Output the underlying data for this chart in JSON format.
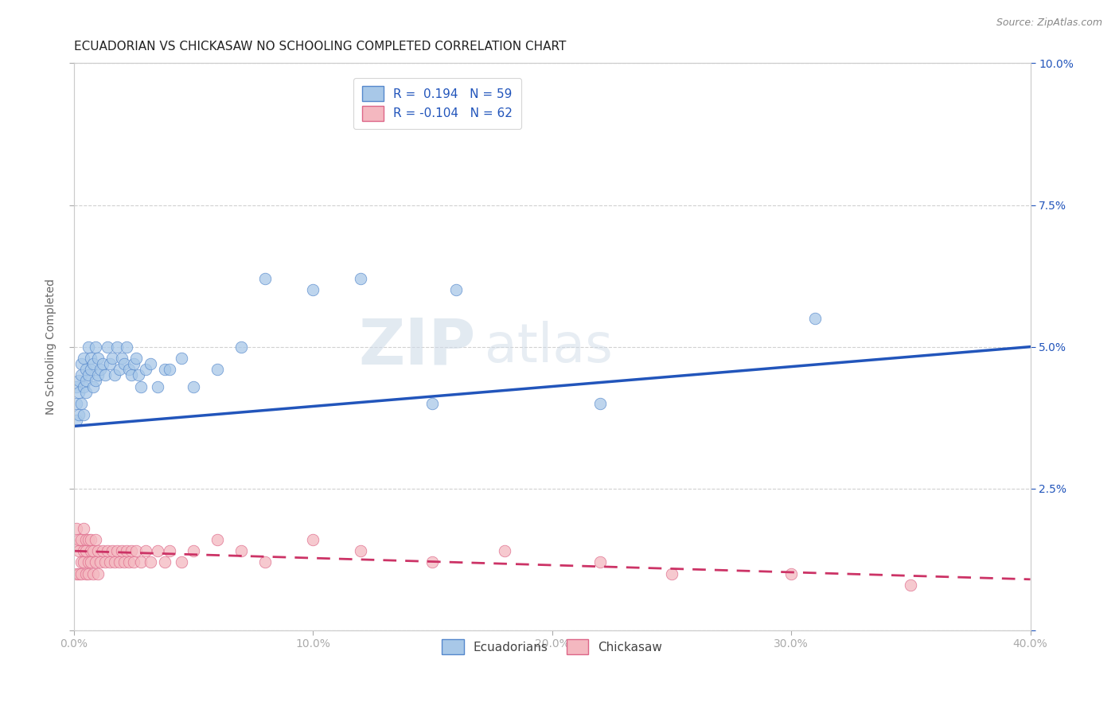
{
  "title": "ECUADORIAN VS CHICKASAW NO SCHOOLING COMPLETED CORRELATION CHART",
  "source": "Source: ZipAtlas.com",
  "xlabel_label": "Ecuadorians",
  "ylabel_label": "No Schooling Completed",
  "watermark_zip": "ZIP",
  "watermark_atlas": "atlas",
  "xmin": 0.0,
  "xmax": 0.4,
  "ymin": 0.0,
  "ymax": 0.1,
  "xticks": [
    0.0,
    0.1,
    0.2,
    0.3,
    0.4
  ],
  "xtick_labels": [
    "0.0%",
    "10.0%",
    "20.0%",
    "30.0%",
    "40.0%"
  ],
  "yticks": [
    0.0,
    0.025,
    0.05,
    0.075,
    0.1
  ],
  "ytick_labels_right": [
    "",
    "2.5%",
    "5.0%",
    "7.5%",
    "10.0%"
  ],
  "blue_R": 0.194,
  "blue_N": 59,
  "pink_R": -0.104,
  "pink_N": 62,
  "blue_color": "#a8c8e8",
  "pink_color": "#f4b8c0",
  "blue_line_color": "#2255bb",
  "pink_line_color": "#cc3366",
  "blue_edge_color": "#5588cc",
  "pink_edge_color": "#dd6688",
  "ecuadorian_x": [
    0.001,
    0.001,
    0.001,
    0.002,
    0.002,
    0.002,
    0.003,
    0.003,
    0.003,
    0.004,
    0.004,
    0.004,
    0.005,
    0.005,
    0.005,
    0.006,
    0.006,
    0.007,
    0.007,
    0.008,
    0.008,
    0.009,
    0.009,
    0.01,
    0.01,
    0.011,
    0.012,
    0.013,
    0.014,
    0.015,
    0.016,
    0.017,
    0.018,
    0.019,
    0.02,
    0.021,
    0.022,
    0.023,
    0.024,
    0.025,
    0.026,
    0.027,
    0.028,
    0.03,
    0.032,
    0.035,
    0.038,
    0.04,
    0.045,
    0.05,
    0.06,
    0.07,
    0.08,
    0.1,
    0.12,
    0.15,
    0.16,
    0.22,
    0.31
  ],
  "ecuadorian_y": [
    0.04,
    0.037,
    0.043,
    0.044,
    0.038,
    0.042,
    0.045,
    0.04,
    0.047,
    0.043,
    0.048,
    0.038,
    0.044,
    0.042,
    0.046,
    0.045,
    0.05,
    0.046,
    0.048,
    0.043,
    0.047,
    0.044,
    0.05,
    0.045,
    0.048,
    0.046,
    0.047,
    0.045,
    0.05,
    0.047,
    0.048,
    0.045,
    0.05,
    0.046,
    0.048,
    0.047,
    0.05,
    0.046,
    0.045,
    0.047,
    0.048,
    0.045,
    0.043,
    0.046,
    0.047,
    0.043,
    0.046,
    0.046,
    0.048,
    0.043,
    0.046,
    0.05,
    0.062,
    0.06,
    0.062,
    0.04,
    0.06,
    0.04,
    0.055
  ],
  "chickasaw_x": [
    0.001,
    0.001,
    0.001,
    0.002,
    0.002,
    0.002,
    0.003,
    0.003,
    0.003,
    0.004,
    0.004,
    0.004,
    0.005,
    0.005,
    0.005,
    0.006,
    0.006,
    0.006,
    0.007,
    0.007,
    0.007,
    0.008,
    0.008,
    0.009,
    0.009,
    0.01,
    0.01,
    0.011,
    0.012,
    0.013,
    0.014,
    0.015,
    0.016,
    0.017,
    0.018,
    0.019,
    0.02,
    0.021,
    0.022,
    0.023,
    0.024,
    0.025,
    0.026,
    0.028,
    0.03,
    0.032,
    0.035,
    0.038,
    0.04,
    0.045,
    0.05,
    0.06,
    0.07,
    0.08,
    0.1,
    0.12,
    0.15,
    0.18,
    0.22,
    0.25,
    0.3,
    0.35
  ],
  "chickasaw_y": [
    0.015,
    0.01,
    0.018,
    0.014,
    0.01,
    0.016,
    0.012,
    0.016,
    0.01,
    0.014,
    0.018,
    0.012,
    0.016,
    0.01,
    0.014,
    0.012,
    0.016,
    0.01,
    0.014,
    0.012,
    0.016,
    0.014,
    0.01,
    0.012,
    0.016,
    0.014,
    0.01,
    0.012,
    0.014,
    0.012,
    0.014,
    0.012,
    0.014,
    0.012,
    0.014,
    0.012,
    0.014,
    0.012,
    0.014,
    0.012,
    0.014,
    0.012,
    0.014,
    0.012,
    0.014,
    0.012,
    0.014,
    0.012,
    0.014,
    0.012,
    0.014,
    0.016,
    0.014,
    0.012,
    0.016,
    0.014,
    0.012,
    0.014,
    0.012,
    0.01,
    0.01,
    0.008
  ],
  "background_color": "#ffffff",
  "grid_color": "#cccccc",
  "title_fontsize": 11,
  "axis_fontsize": 10,
  "tick_fontsize": 10,
  "legend_fontsize": 11,
  "blue_line_start_y": 0.036,
  "blue_line_end_y": 0.05,
  "pink_line_start_y": 0.014,
  "pink_line_end_y": 0.009
}
